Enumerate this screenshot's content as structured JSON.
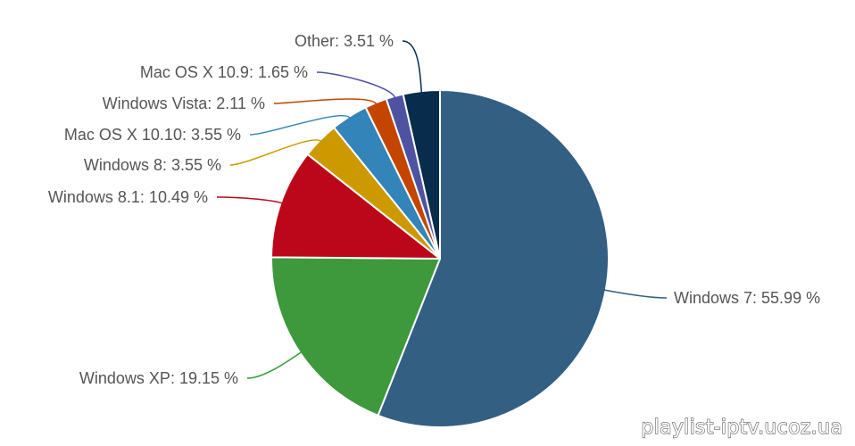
{
  "chart_data": {
    "type": "pie",
    "title": "",
    "slices": [
      {
        "label": "Windows 7: 55.99 %",
        "name": "Windows 7",
        "value": 55.99,
        "color": "#335f83"
      },
      {
        "label": "Windows XP: 19.15 %",
        "name": "Windows XP",
        "value": 19.15,
        "color": "#3d993b"
      },
      {
        "label": "Windows 8.1: 10.49 %",
        "name": "Windows 8.1",
        "value": 10.49,
        "color": "#bb0719"
      },
      {
        "label": "Windows 8: 3.55 %",
        "name": "Windows 8",
        "value": 3.55,
        "color": "#cc9a00"
      },
      {
        "label": "Mac OS X 10.10: 3.55 %",
        "name": "Mac OS X 10.10",
        "value": 3.55,
        "color": "#3384b8"
      },
      {
        "label": "Windows Vista: 2.11 %",
        "name": "Windows Vista",
        "value": 2.11,
        "color": "#c44500"
      },
      {
        "label": "Mac OS X 10.9: 1.65 %",
        "name": "Mac OS X 10.9",
        "value": 1.65,
        "color": "#4d53a0"
      },
      {
        "label": "Other: 3.51 %",
        "name": "Other",
        "value": 3.51,
        "color": "#082c4c"
      }
    ],
    "start_angle": "12 o'clock",
    "direction": "clockwise",
    "legend": "none"
  },
  "watermark": {
    "text": "playlist-iptv.ucoz.ua"
  }
}
